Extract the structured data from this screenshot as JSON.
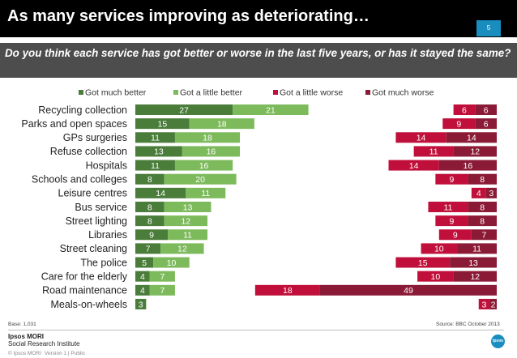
{
  "header": {
    "title": "As many services improving as deteriorating…",
    "page_number": "5"
  },
  "question": "Do you think each service has got better or worse in the last five years, or has it stayed the same?",
  "footer": {
    "base": "Base: 1,031",
    "source": "Source: BBC October 2013",
    "logo_line1": "Ipsos MORI",
    "logo_line2": "Social Research Institute",
    "copyright": "© Ipsos MORI",
    "version": "Version 1 | Public",
    "badge": "Ipsos"
  },
  "colors": {
    "much_better": "#4a7c3a",
    "little_better": "#7dba5c",
    "little_worse": "#c00f3a",
    "much_worse": "#8a1a35"
  },
  "chart_data": {
    "type": "bar",
    "orientation": "horizontal-diverging",
    "title": "",
    "categories": [
      "Recycling collection",
      "Parks and open spaces",
      "GPs surgeries",
      "Refuse collection",
      "Hospitals",
      "Schools and colleges",
      "Leisure centres",
      "Bus service",
      "Street lighting",
      "Libraries",
      "Street cleaning",
      "The police",
      "Care for the elderly",
      "Road maintenance",
      "Meals-on-wheels"
    ],
    "series": [
      {
        "name": "Got much better",
        "side": "better",
        "values": [
          27,
          15,
          11,
          13,
          11,
          8,
          14,
          8,
          8,
          9,
          7,
          5,
          4,
          4,
          3
        ]
      },
      {
        "name": "Got a little better",
        "side": "better",
        "values": [
          21,
          18,
          18,
          16,
          16,
          20,
          11,
          13,
          12,
          11,
          12,
          10,
          7,
          7,
          0
        ]
      },
      {
        "name": "Got a little worse",
        "side": "worse",
        "values": [
          6,
          9,
          14,
          11,
          14,
          9,
          4,
          11,
          9,
          9,
          10,
          15,
          10,
          18,
          3
        ]
      },
      {
        "name": "Got much worse",
        "side": "worse",
        "values": [
          6,
          6,
          14,
          12,
          16,
          8,
          3,
          8,
          8,
          7,
          11,
          13,
          12,
          49,
          2
        ]
      }
    ],
    "legend_position": "top",
    "unit": "%"
  }
}
